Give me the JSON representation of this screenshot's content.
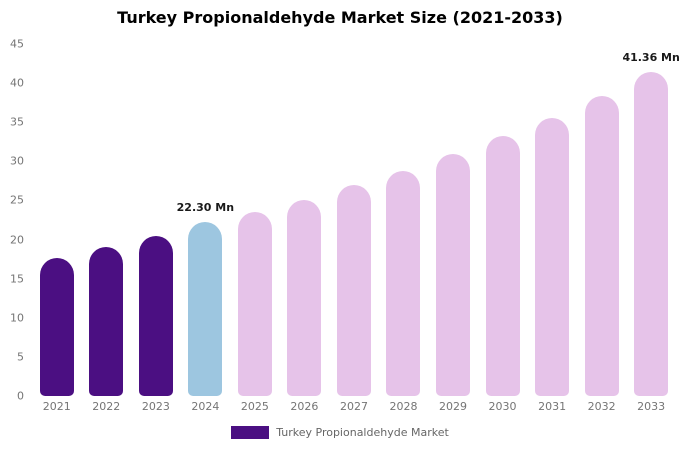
{
  "chart_data": {
    "type": "bar",
    "title": "Turkey Propionaldehyde Market Size (2021-2033)",
    "categories": [
      "2021",
      "2022",
      "2023",
      "2024",
      "2025",
      "2026",
      "2027",
      "2028",
      "2029",
      "2030",
      "2031",
      "2032",
      "2033"
    ],
    "values": [
      17.6,
      19.1,
      20.4,
      22.3,
      23.5,
      25.1,
      27.0,
      28.8,
      31.0,
      33.2,
      35.6,
      38.3,
      41.36
    ],
    "data_labels": [
      null,
      null,
      null,
      "22.30 Mn",
      null,
      null,
      null,
      null,
      null,
      null,
      null,
      null,
      "41.36 Mn"
    ],
    "bar_colors": [
      "#4B0F82",
      "#4B0F82",
      "#4B0F82",
      "#9DC6E0",
      "#E6C3E9",
      "#E6C3E9",
      "#E6C3E9",
      "#E6C3E9",
      "#E6C3E9",
      "#E6C3E9",
      "#E6C3E9",
      "#E6C3E9",
      "#E6C3E9"
    ],
    "ylim": [
      0,
      45
    ],
    "yticks": [
      0,
      5,
      10,
      15,
      20,
      25,
      30,
      35,
      40,
      45
    ],
    "grid": false,
    "legend_position": "bottom",
    "legend": [
      "Turkey Propionaldehyde Market"
    ],
    "legend_swatch_color": "#4B0F82",
    "colors_meaning": {
      "historical": "#4B0F82",
      "base_year_2024": "#9DC6E0",
      "forecast": "#E6C3E9"
    }
  }
}
